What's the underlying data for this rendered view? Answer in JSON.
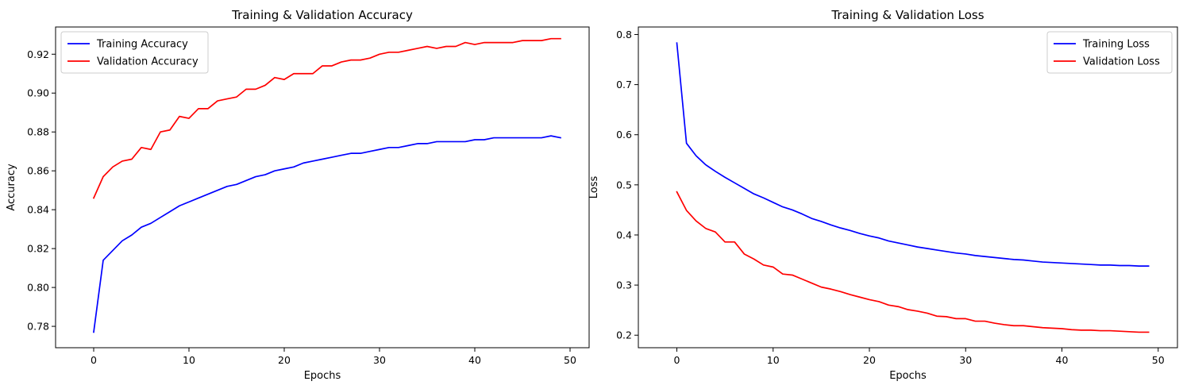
{
  "chart_data": [
    {
      "type": "line",
      "title": "Training & Validation Accuracy",
      "xlabel": "Epochs",
      "ylabel": "Accuracy",
      "xlim": [
        -4,
        52
      ],
      "ylim": [
        0.769,
        0.934
      ],
      "xticks": [
        0,
        10,
        20,
        30,
        40,
        50
      ],
      "yticks": [
        0.78,
        0.8,
        0.82,
        0.84,
        0.86,
        0.88,
        0.9,
        0.92
      ],
      "ytick_labels": [
        "0.78",
        "0.80",
        "0.82",
        "0.84",
        "0.86",
        "0.88",
        "0.90",
        "0.92"
      ],
      "grid": false,
      "legend": "top-left",
      "x": [
        0,
        1,
        2,
        3,
        4,
        5,
        6,
        7,
        8,
        9,
        10,
        11,
        12,
        13,
        14,
        15,
        16,
        17,
        18,
        19,
        20,
        21,
        22,
        23,
        24,
        25,
        26,
        27,
        28,
        29,
        30,
        31,
        32,
        33,
        34,
        35,
        36,
        37,
        38,
        39,
        40,
        41,
        42,
        43,
        44,
        45,
        46,
        47,
        48,
        49
      ],
      "series": [
        {
          "name": "Training Accuracy",
          "color": "#0000ff",
          "values": [
            0.777,
            0.814,
            0.819,
            0.824,
            0.827,
            0.831,
            0.833,
            0.836,
            0.839,
            0.842,
            0.844,
            0.846,
            0.848,
            0.85,
            0.852,
            0.853,
            0.855,
            0.857,
            0.858,
            0.86,
            0.861,
            0.862,
            0.864,
            0.865,
            0.866,
            0.867,
            0.868,
            0.869,
            0.869,
            0.87,
            0.871,
            0.872,
            0.872,
            0.873,
            0.874,
            0.874,
            0.875,
            0.875,
            0.875,
            0.875,
            0.876,
            0.876,
            0.877,
            0.877,
            0.877,
            0.877,
            0.877,
            0.877,
            0.878,
            0.877
          ]
        },
        {
          "name": "Validation Accuracy",
          "color": "#ff0000",
          "values": [
            0.846,
            0.857,
            0.862,
            0.865,
            0.866,
            0.872,
            0.871,
            0.88,
            0.881,
            0.888,
            0.887,
            0.892,
            0.892,
            0.896,
            0.897,
            0.898,
            0.902,
            0.902,
            0.904,
            0.908,
            0.907,
            0.91,
            0.91,
            0.91,
            0.914,
            0.914,
            0.916,
            0.917,
            0.917,
            0.918,
            0.92,
            0.921,
            0.921,
            0.922,
            0.923,
            0.924,
            0.923,
            0.924,
            0.924,
            0.926,
            0.925,
            0.926,
            0.926,
            0.926,
            0.926,
            0.927,
            0.927,
            0.927,
            0.928,
            0.928
          ]
        }
      ]
    },
    {
      "type": "line",
      "title": "Training & Validation Loss",
      "xlabel": "Epochs",
      "ylabel": "Loss",
      "xlim": [
        -4,
        52
      ],
      "ylim": [
        0.175,
        0.815
      ],
      "xticks": [
        0,
        10,
        20,
        30,
        40,
        50
      ],
      "yticks": [
        0.2,
        0.3,
        0.4,
        0.5,
        0.6,
        0.7,
        0.8
      ],
      "ytick_labels": [
        "0.2",
        "0.3",
        "0.4",
        "0.5",
        "0.6",
        "0.7",
        "0.8"
      ],
      "grid": false,
      "legend": "top-right",
      "x": [
        0,
        1,
        2,
        3,
        4,
        5,
        6,
        7,
        8,
        9,
        10,
        11,
        12,
        13,
        14,
        15,
        16,
        17,
        18,
        19,
        20,
        21,
        22,
        23,
        24,
        25,
        26,
        27,
        28,
        29,
        30,
        31,
        32,
        33,
        34,
        35,
        36,
        37,
        38,
        39,
        40,
        41,
        42,
        43,
        44,
        45,
        46,
        47,
        48,
        49
      ],
      "series": [
        {
          "name": "Training Loss",
          "color": "#0000ff",
          "values": [
            0.783,
            0.583,
            0.558,
            0.54,
            0.527,
            0.515,
            0.504,
            0.493,
            0.482,
            0.474,
            0.465,
            0.456,
            0.45,
            0.442,
            0.433,
            0.427,
            0.42,
            0.414,
            0.409,
            0.403,
            0.398,
            0.394,
            0.388,
            0.384,
            0.38,
            0.376,
            0.373,
            0.37,
            0.367,
            0.364,
            0.362,
            0.359,
            0.357,
            0.355,
            0.353,
            0.351,
            0.35,
            0.348,
            0.346,
            0.345,
            0.344,
            0.343,
            0.342,
            0.341,
            0.34,
            0.34,
            0.339,
            0.339,
            0.338,
            0.338
          ]
        },
        {
          "name": "Validation Loss",
          "color": "#ff0000",
          "values": [
            0.486,
            0.449,
            0.428,
            0.413,
            0.406,
            0.386,
            0.386,
            0.362,
            0.352,
            0.34,
            0.336,
            0.322,
            0.32,
            0.312,
            0.304,
            0.296,
            0.292,
            0.287,
            0.281,
            0.276,
            0.271,
            0.267,
            0.26,
            0.257,
            0.251,
            0.248,
            0.244,
            0.238,
            0.237,
            0.233,
            0.233,
            0.228,
            0.228,
            0.224,
            0.221,
            0.219,
            0.219,
            0.217,
            0.215,
            0.214,
            0.213,
            0.211,
            0.21,
            0.21,
            0.209,
            0.209,
            0.208,
            0.207,
            0.206,
            0.206
          ]
        }
      ]
    }
  ]
}
